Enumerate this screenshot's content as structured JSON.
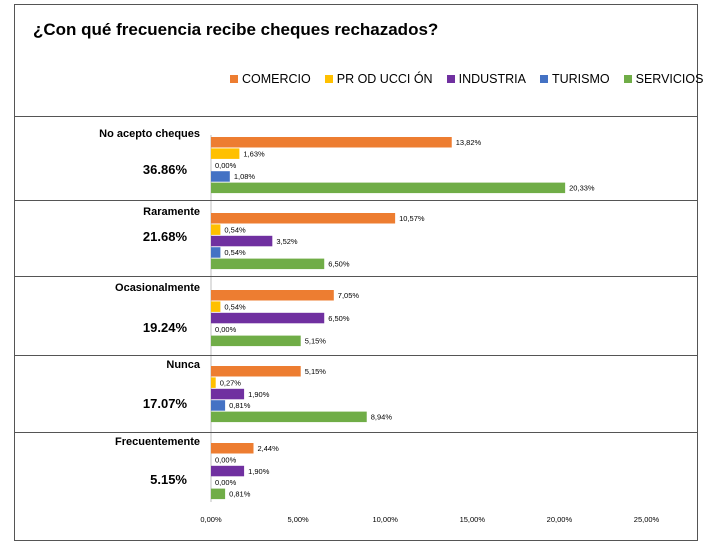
{
  "chart_data": {
    "type": "bar",
    "orientation": "horizontal",
    "title": "¿Con qué frecuencia recibe cheques rechazados?",
    "xlabel": "",
    "ylabel": "",
    "xlim": [
      0,
      25
    ],
    "x_ticks": [
      "0,00%",
      "5,00%",
      "10,00%",
      "15,00%",
      "20,00%",
      "25,00%"
    ],
    "grid": false,
    "legend_position": "top-right",
    "series": [
      {
        "name": "COMERCIO",
        "color": "#ED7D31"
      },
      {
        "name": "PR OD UCCI ÓN",
        "color": "#FFC000"
      },
      {
        "name": "INDUSTRIA",
        "color": "#7030A0"
      },
      {
        "name": "TURISMO",
        "color": "#4472C4"
      },
      {
        "name": "SERVICIOS",
        "color": "#70AD47"
      }
    ],
    "categories": [
      {
        "label": "No acepto cheques",
        "total": "36.86%",
        "values": [
          13.82,
          1.63,
          0.0,
          1.08,
          20.33
        ],
        "value_labels": [
          "13,82%",
          "1,63%",
          "0,00%",
          "1,08%",
          "20,33%"
        ]
      },
      {
        "label": "Raramente",
        "total": "21.68%",
        "values": [
          10.57,
          0.54,
          3.52,
          0.54,
          6.5
        ],
        "value_labels": [
          "10,57%",
          "0,54%",
          "3,52%",
          "0,54%",
          "6,50%"
        ]
      },
      {
        "label": "Ocasionalmente",
        "total": "19.24%",
        "values": [
          7.05,
          0.54,
          6.5,
          0.0,
          5.15
        ],
        "value_labels": [
          "7,05%",
          "0,54%",
          "6,50%",
          "0,00%",
          "5,15%"
        ]
      },
      {
        "label": "Nunca",
        "total": "17.07%",
        "values": [
          5.15,
          0.27,
          1.9,
          0.81,
          8.94
        ],
        "value_labels": [
          "5,15%",
          "0,27%",
          "1,90%",
          "0,81%",
          "8,94%"
        ]
      },
      {
        "label": "Frecuentemente",
        "total": "5.15%",
        "values": [
          2.44,
          0.0,
          1.9,
          0.0,
          0.81
        ],
        "value_labels": [
          "2,44%",
          "0,00%",
          "1,90%",
          "0,00%",
          "0,81%"
        ]
      }
    ]
  }
}
